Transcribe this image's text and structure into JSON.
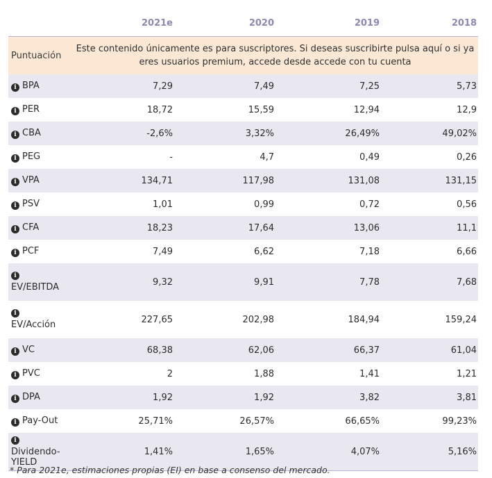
{
  "table": {
    "columns": [
      "",
      "2021e",
      "2020",
      "2019",
      "2018"
    ],
    "score_row": {
      "label": "Puntuación",
      "message": "Este contenido únicamente es para suscriptores. Si deseas suscribirte pulsa aquí o si ya eres usuarios premium, accede desde accede con tu cuenta"
    },
    "rows": [
      {
        "label": "BPA",
        "values": [
          "7,29",
          "7,49",
          "7,25",
          "5,73"
        ]
      },
      {
        "label": "PER",
        "values": [
          "18,72",
          "15,59",
          "12,94",
          "12,9"
        ]
      },
      {
        "label": "CBA",
        "values": [
          "-2,6%",
          "3,32%",
          "26,49%",
          "49,02%"
        ]
      },
      {
        "label": "PEG",
        "values": [
          "-",
          "4,7",
          "0,49",
          "0,26"
        ]
      },
      {
        "label": "VPA",
        "values": [
          "134,71",
          "117,98",
          "131,08",
          "131,15"
        ]
      },
      {
        "label": "PSV",
        "values": [
          "1,01",
          "0,99",
          "0,72",
          "0,56"
        ]
      },
      {
        "label": "CFA",
        "values": [
          "18,23",
          "17,64",
          "13,06",
          "11,1"
        ]
      },
      {
        "label": "PCF",
        "values": [
          "7,49",
          "6,62",
          "7,18",
          "6,66"
        ]
      },
      {
        "label": "EV/EBITDA",
        "values": [
          "9,32",
          "9,91",
          "7,78",
          "7,68"
        ]
      },
      {
        "label": "EV/Acción",
        "values": [
          "227,65",
          "202,98",
          "184,94",
          "159,24"
        ]
      },
      {
        "label": "VC",
        "values": [
          "68,38",
          "62,06",
          "66,37",
          "61,04"
        ]
      },
      {
        "label": "PVC",
        "values": [
          "2",
          "1,88",
          "1,41",
          "1,21"
        ]
      },
      {
        "label": "DPA",
        "values": [
          "1,92",
          "1,92",
          "3,82",
          "3,81"
        ]
      },
      {
        "label": "Pay-Out",
        "values": [
          "25,71%",
          "26,57%",
          "66,65%",
          "99,23%"
        ]
      },
      {
        "label": "Dividendo-YIELD",
        "values": [
          "1,41%",
          "1,65%",
          "4,07%",
          "5,16%"
        ]
      }
    ]
  },
  "footnote": "* Para 2021e, estimaciones propias (EI) en base a consenso del mercado.",
  "colors": {
    "header_text": "#8f86b3",
    "score_bg": "#fce8d5",
    "stripe_bg": "#e9e8f1"
  }
}
